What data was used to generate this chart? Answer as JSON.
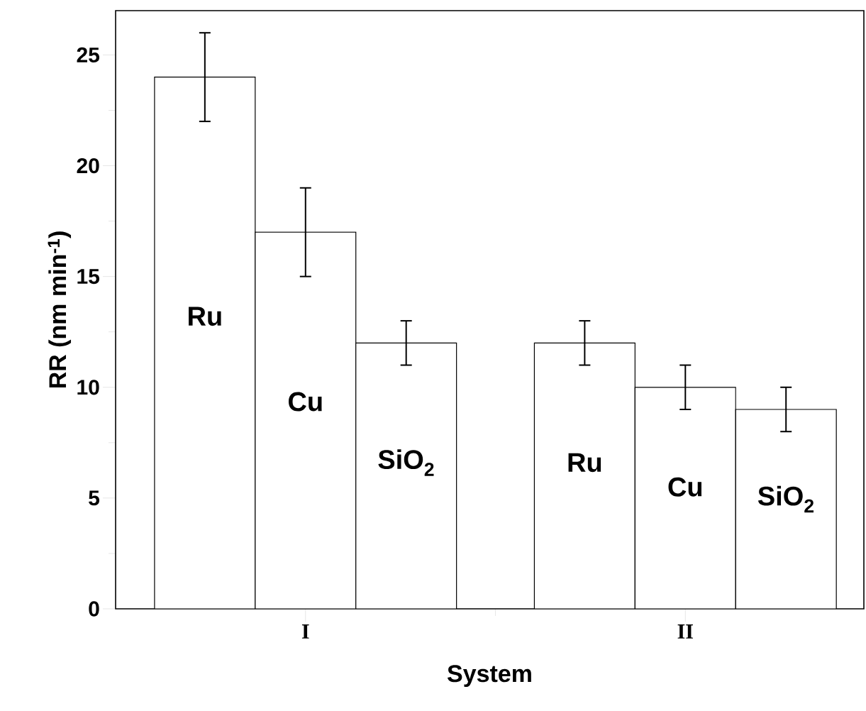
{
  "chart_data": {
    "type": "bar",
    "xlabel": "System",
    "ylabel": "RR (nm min$^{-1}$)",
    "categories": [
      "I",
      "II"
    ],
    "series": [
      {
        "name": "Ru",
        "color": "#ffffff",
        "values": [
          24,
          12
        ],
        "errors": [
          2,
          1
        ]
      },
      {
        "name": "Cu",
        "color": "#ffffff",
        "values": [
          17,
          10
        ],
        "errors": [
          2,
          1
        ]
      },
      {
        "name": "SiO$_{2}$",
        "color": "#ffffff",
        "values": [
          12,
          9
        ],
        "errors": [
          1,
          1
        ]
      }
    ],
    "ylim": [
      0,
      27
    ],
    "yticks": [
      0,
      5,
      10,
      15,
      20,
      25
    ],
    "grid": false
  }
}
